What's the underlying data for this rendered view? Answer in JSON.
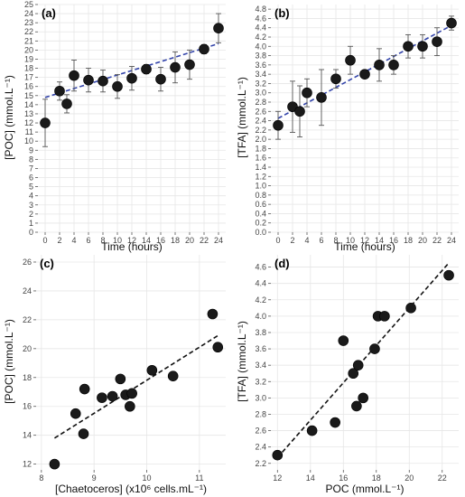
{
  "chart_data": [
    {
      "panel_label": "(a)",
      "type": "scatter",
      "xlabel": "Time (hours)",
      "ylabel": "[POC] (mmol.L⁻¹)",
      "xlim": [
        -1,
        25
      ],
      "ylim": [
        0,
        25
      ],
      "xticks": [
        0,
        2,
        4,
        6,
        8,
        10,
        12,
        14,
        16,
        18,
        20,
        22,
        24
      ],
      "yticks": [
        0,
        1,
        2,
        3,
        4,
        5,
        6,
        7,
        8,
        9,
        10,
        11,
        12,
        13,
        14,
        15,
        16,
        17,
        18,
        19,
        20,
        21,
        22,
        23,
        24,
        25
      ],
      "grid": true,
      "x": [
        0,
        2,
        3,
        4,
        6,
        8,
        10,
        12,
        14,
        16,
        18,
        20,
        22,
        24
      ],
      "y": [
        12.0,
        15.5,
        14.1,
        17.2,
        16.7,
        16.6,
        16.0,
        16.9,
        17.9,
        16.8,
        18.1,
        18.4,
        20.1,
        22.4
      ],
      "err": [
        2.6,
        1.0,
        1.0,
        1.7,
        1.3,
        1.2,
        1.3,
        1.3,
        0.5,
        1.3,
        1.7,
        1.6,
        0.5,
        1.6
      ],
      "trend": {
        "style": "dashed",
        "color": "#3344aa",
        "x": [
          0,
          24
        ],
        "y": [
          14.8,
          20.7
        ]
      }
    },
    {
      "panel_label": "(b)",
      "type": "scatter",
      "xlabel": "Time (hours)",
      "ylabel": "[TFA] (mmol.L⁻¹)",
      "xlim": [
        -1,
        25
      ],
      "ylim": [
        0,
        4.9
      ],
      "xticks": [
        0,
        2,
        4,
        6,
        8,
        10,
        12,
        14,
        16,
        18,
        20,
        22,
        24
      ],
      "yticks": [
        0.0,
        0.2,
        0.4,
        0.6,
        0.8,
        1.0,
        1.2,
        1.4,
        1.6,
        1.8,
        2.0,
        2.2,
        2.4,
        2.6,
        2.8,
        3.0,
        3.2,
        3.4,
        3.6,
        3.8,
        4.0,
        4.2,
        4.4,
        4.6,
        4.8
      ],
      "tick_decimals": 1,
      "grid": true,
      "x": [
        0,
        2,
        3,
        4,
        6,
        8,
        10,
        12,
        14,
        16,
        18,
        20,
        22,
        24
      ],
      "y": [
        2.3,
        2.7,
        2.6,
        3.0,
        2.9,
        3.3,
        3.7,
        3.4,
        3.6,
        3.6,
        4.0,
        4.0,
        4.1,
        4.5
      ],
      "err": [
        0.3,
        0.55,
        0.55,
        0.3,
        0.6,
        0.2,
        0.3,
        0.05,
        0.35,
        0.2,
        0.25,
        0.25,
        0.3,
        0.15
      ],
      "trend": {
        "style": "dashed",
        "color": "#3344aa",
        "x": [
          0,
          24
        ],
        "y": [
          2.45,
          4.45
        ]
      }
    },
    {
      "panel_label": "(c)",
      "type": "scatter",
      "xlabel": "[Chaetoceros] (x10⁶ cells.mL⁻¹)",
      "ylabel": "[POC] (mmol.L⁻¹)",
      "xlim": [
        7.9,
        11.5
      ],
      "ylim": [
        11.6,
        26.5
      ],
      "xticks": [
        8,
        9,
        10,
        11
      ],
      "yticks": [
        12,
        14,
        16,
        18,
        20,
        22,
        24,
        26
      ],
      "grid": true,
      "x": [
        8.25,
        8.65,
        8.8,
        8.82,
        9.15,
        9.35,
        9.5,
        9.6,
        9.68,
        9.72,
        10.1,
        10.5,
        11.25,
        11.35
      ],
      "y": [
        12.0,
        15.5,
        14.1,
        17.2,
        16.6,
        16.7,
        17.9,
        16.8,
        16.0,
        16.9,
        18.5,
        18.1,
        22.4,
        20.1
      ],
      "trend": {
        "style": "dashed",
        "color": "#111111",
        "x": [
          8.25,
          11.35
        ],
        "y": [
          13.8,
          20.9
        ]
      }
    },
    {
      "panel_label": "(d)",
      "type": "scatter",
      "xlabel": "POC (mmol.L⁻¹)",
      "ylabel": "[TFA] (mmol.L⁻¹)",
      "xlim": [
        11.6,
        23.0
      ],
      "ylim": [
        2.12,
        4.75
      ],
      "xticks": [
        12,
        14,
        16,
        18,
        20,
        22
      ],
      "yticks": [
        2.2,
        2.4,
        2.6,
        2.8,
        3.0,
        3.2,
        3.4,
        3.6,
        3.8,
        4.0,
        4.2,
        4.4,
        4.6
      ],
      "tick_decimals": 1,
      "grid": true,
      "x": [
        12.0,
        14.1,
        15.5,
        16.0,
        16.6,
        16.8,
        16.9,
        17.2,
        17.9,
        18.1,
        18.5,
        20.1,
        22.4
      ],
      "y": [
        2.3,
        2.6,
        2.7,
        3.7,
        3.3,
        2.9,
        3.4,
        3.0,
        3.6,
        4.0,
        4.0,
        4.1,
        4.5
      ],
      "trend": {
        "style": "dashed",
        "color": "#111111",
        "x": [
          12.0,
          22.4
        ],
        "y": [
          2.27,
          4.65
        ]
      }
    }
  ]
}
